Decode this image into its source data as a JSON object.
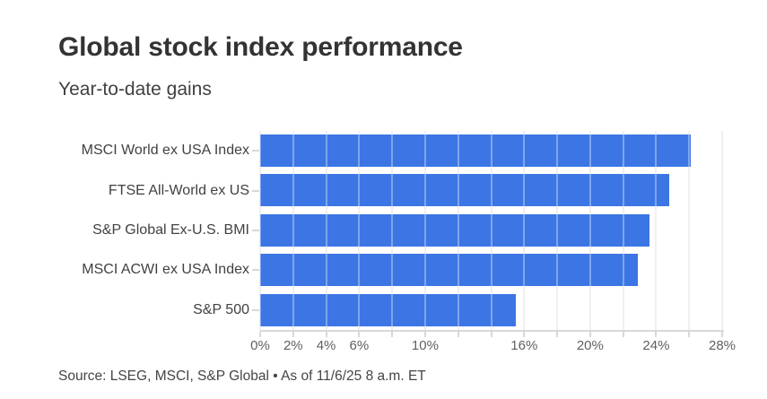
{
  "header": {
    "title": "Global stock index performance",
    "subtitle": "Year-to-date gains"
  },
  "footer": {
    "source": "Source: LSEG, MSCI, S&P Global • As of 11/6/25 8 a.m. ET"
  },
  "colors": {
    "bar": "#3c76e4",
    "grid": "#e9e9e9",
    "axis": "#d8d8d8",
    "title_text": "#333333",
    "body_text": "#414141",
    "axis_text": "#606060"
  },
  "chart_data": {
    "type": "bar",
    "orientation": "horizontal",
    "title": "Global stock index performance",
    "subtitle": "Year-to-date gains",
    "categories": [
      "MSCI World ex USA Index",
      "FTSE All-World ex US",
      "S&P Global Ex-U.S. BMI",
      "MSCI ACWI ex USA Index",
      "S&P 500"
    ],
    "values": [
      26.1,
      24.8,
      23.6,
      22.9,
      15.5
    ],
    "unit": "%",
    "xlabel": "",
    "ylabel": "",
    "xlim": [
      0,
      28
    ],
    "x_tick_values": [
      0,
      2,
      4,
      6,
      10,
      16,
      20,
      24,
      28
    ],
    "x_tick_labels": [
      "0%",
      "2%",
      "4%",
      "6%",
      "10%",
      "16%",
      "20%",
      "24%",
      "28%"
    ],
    "gridline_step": 2,
    "grid": "on",
    "legend": "none"
  }
}
